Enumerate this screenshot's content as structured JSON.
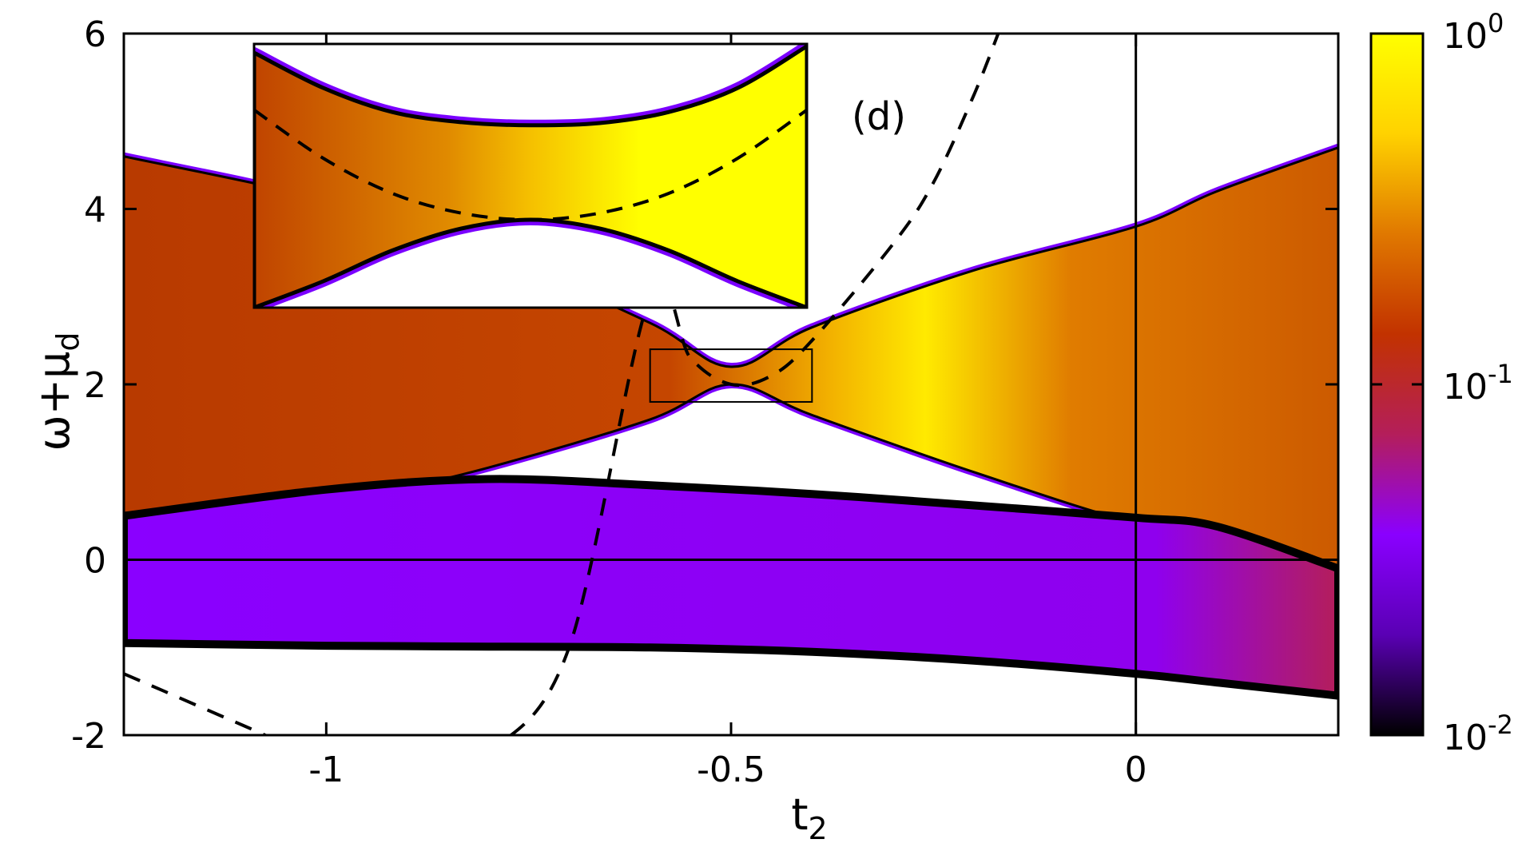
{
  "chart_data": {
    "type": "heatmap",
    "panel_label": "(d)",
    "xlabel": "t",
    "xlabel_sub": "2",
    "ylabel": "ω+μ",
    "ylabel_sub": "d",
    "xlim": [
      -1.25,
      0.25
    ],
    "ylim": [
      -2,
      6
    ],
    "xticks": [
      {
        "value": -1,
        "label": "-1"
      },
      {
        "value": -0.5,
        "label": "-0.5"
      },
      {
        "value": 0,
        "label": "0"
      }
    ],
    "yticks": [
      {
        "value": 6,
        "label": "6"
      },
      {
        "value": 4,
        "label": "4"
      },
      {
        "value": 2,
        "label": "2"
      },
      {
        "value": 0,
        "label": "0"
      },
      {
        "value": -2,
        "label": "-2"
      }
    ],
    "colorbar": {
      "scale": "log",
      "range": [
        0.01,
        1
      ],
      "ticks": [
        {
          "base": "10",
          "exp": "0"
        },
        {
          "base": "10",
          "exp": "-1"
        },
        {
          "base": "10",
          "exp": "-2"
        }
      ],
      "colors": [
        "#000000",
        "#5a00b4",
        "#8a00ff",
        "#b41e5a",
        "#c23200",
        "#e07800",
        "#ffd200",
        "#ffff00"
      ]
    },
    "reference_lines": [
      {
        "orientation": "horizontal",
        "value": 0
      },
      {
        "orientation": "vertical",
        "value": 0
      }
    ],
    "upper_band": {
      "x": [
        -1.25,
        -1.0,
        -0.8,
        -0.6,
        -0.5,
        -0.4,
        -0.2,
        0.0,
        0.1,
        0.25
      ],
      "upper_edge": [
        4.6,
        4.1,
        3.5,
        2.7,
        2.2,
        2.65,
        3.3,
        3.8,
        4.2,
        4.7
      ],
      "lower_edge": [
        0.0,
        0.6,
        1.05,
        1.6,
        2.0,
        1.65,
        1.0,
        0.42,
        0.35,
        -0.3
      ]
    },
    "lower_band": {
      "x": [
        -1.25,
        -1.0,
        -0.8,
        -0.6,
        -0.4,
        -0.2,
        0.0,
        0.1,
        0.25
      ],
      "upper_edge": [
        0.5,
        0.8,
        0.92,
        0.85,
        0.75,
        0.62,
        0.48,
        0.38,
        -0.1
      ],
      "lower_edge": [
        -0.95,
        -0.98,
        -0.99,
        -1.0,
        -1.05,
        -1.15,
        -1.3,
        -1.4,
        -1.55
      ]
    },
    "dashed_curve": {
      "x": [
        -1.25,
        -1.2,
        -1.1,
        -1.0,
        -0.9,
        -0.8,
        -0.7,
        -0.6,
        -0.55,
        -0.5,
        -0.45,
        -0.4,
        -0.3,
        -0.25,
        -0.2,
        -0.17
      ],
      "y": [
        -1.3,
        -1.5,
        -1.9,
        -2.3,
        -2.6,
        -2.2,
        -1.0,
        3.0,
        2.3,
        2.0,
        2.1,
        2.5,
        3.6,
        4.3,
        5.3,
        6.0
      ]
    },
    "inset": {
      "xlim": [
        -0.6,
        -0.4
      ],
      "ylim": [
        1.8,
        2.4
      ],
      "upper_edge": [
        2.38,
        2.3,
        2.245,
        2.222,
        2.215,
        2.22,
        2.245,
        2.3,
        2.395
      ],
      "lower_edge": [
        1.8,
        1.86,
        1.93,
        1.98,
        2.0,
        1.98,
        1.93,
        1.86,
        1.8
      ],
      "dashed": [
        2.25,
        2.14,
        2.06,
        2.015,
        2.0,
        2.015,
        2.06,
        2.14,
        2.25
      ]
    }
  }
}
